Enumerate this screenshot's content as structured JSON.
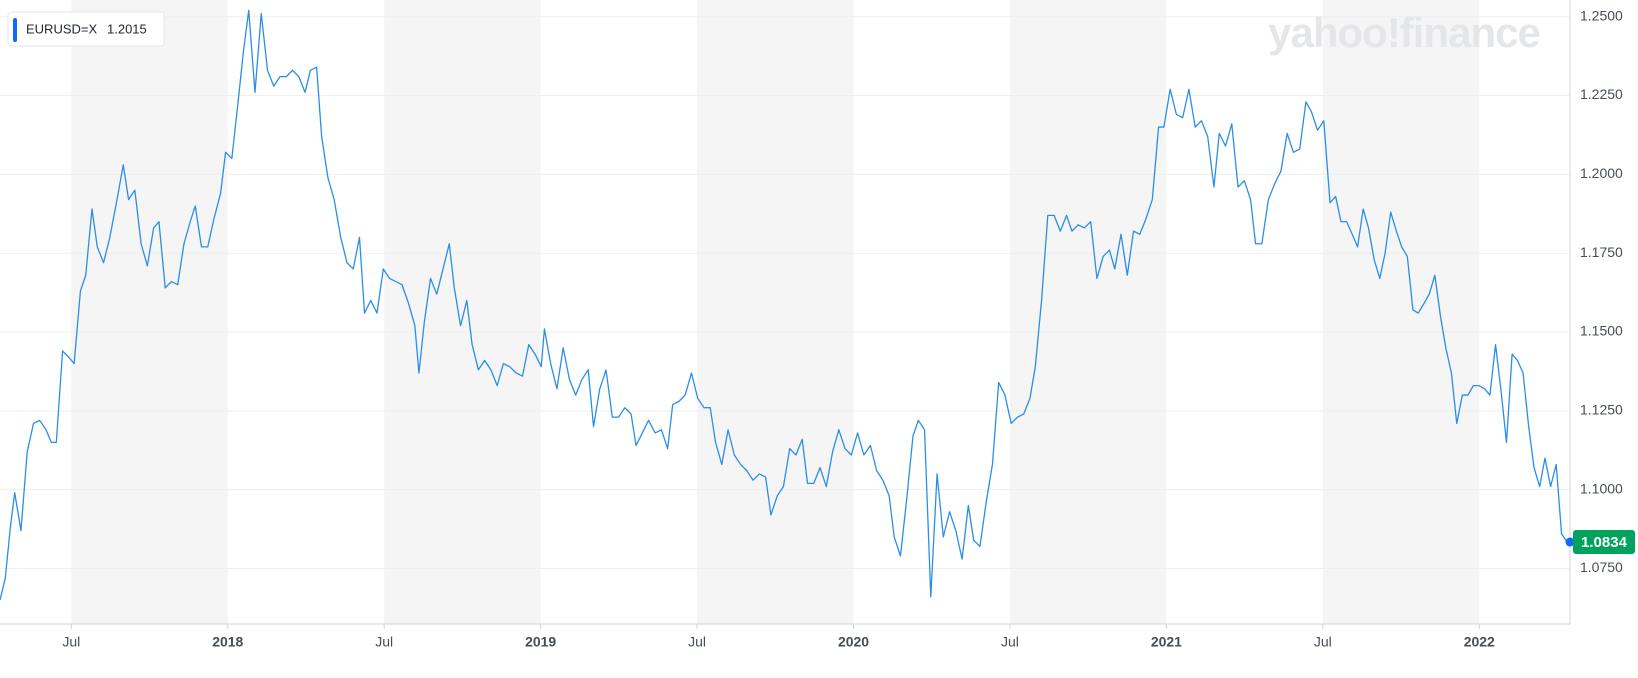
{
  "chart_data": {
    "type": "line",
    "legend_name": "EURUSD=X",
    "legend_value": 1.2015,
    "watermark": "yahoo!finance",
    "current_price": 1.0834,
    "grid": true,
    "xlim": [
      2017.272,
      2022.29
    ],
    "ylim": [
      1.0574,
      1.2553
    ],
    "xticks": [
      {
        "value": 2017.5,
        "label": "Jul"
      },
      {
        "value": 2018,
        "label": "2018"
      },
      {
        "value": 2018.5,
        "label": "Jul"
      },
      {
        "value": 2019,
        "label": "2019"
      },
      {
        "value": 2019.5,
        "label": "Jul"
      },
      {
        "value": 2020,
        "label": "2020"
      },
      {
        "value": 2020.5,
        "label": "Jul"
      },
      {
        "value": 2021,
        "label": "2021"
      },
      {
        "value": 2021.5,
        "label": "Jul"
      },
      {
        "value": 2022,
        "label": "2022"
      }
    ],
    "yticks": [
      {
        "value": 1.075,
        "label": "1.0750"
      },
      {
        "value": 1.1,
        "label": "1.1000"
      },
      {
        "value": 1.125,
        "label": "1.1250"
      },
      {
        "value": 1.15,
        "label": "1.1500"
      },
      {
        "value": 1.175,
        "label": "1.1750"
      },
      {
        "value": 1.2,
        "label": "1.2000"
      },
      {
        "value": 1.225,
        "label": "1.2250"
      },
      {
        "value": 1.25,
        "label": "1.2500"
      }
    ],
    "series": [
      {
        "name": "EURUSD=X",
        "color": "#2b8ee6",
        "x": [
          2017.272,
          2017.289,
          2017.305,
          2017.319,
          2017.339,
          2017.359,
          2017.379,
          2017.399,
          2017.419,
          2017.436,
          2017.452,
          2017.472,
          2017.492,
          2017.509,
          2017.529,
          2017.546,
          2017.566,
          2017.583,
          2017.603,
          2017.623,
          2017.646,
          2017.666,
          2017.683,
          2017.703,
          2017.723,
          2017.743,
          2017.763,
          2017.78,
          2017.8,
          2017.82,
          2017.84,
          2017.86,
          2017.88,
          2017.896,
          2017.916,
          2017.936,
          2017.956,
          2017.977,
          2017.993,
          2018.013,
          2018.033,
          2018.05,
          2018.067,
          2018.087,
          2018.107,
          2018.127,
          2018.147,
          2018.167,
          2018.187,
          2018.207,
          2018.227,
          2018.247,
          2018.264,
          2018.284,
          2018.3,
          2018.32,
          2018.34,
          2018.361,
          2018.381,
          2018.401,
          2018.421,
          2018.437,
          2018.457,
          2018.477,
          2018.497,
          2018.517,
          2018.537,
          2018.557,
          2018.578,
          2018.598,
          2018.611,
          2018.628,
          2018.648,
          2018.668,
          2018.688,
          2018.708,
          2018.724,
          2018.744,
          2018.764,
          2018.781,
          2018.801,
          2018.821,
          2018.841,
          2018.861,
          2018.881,
          2018.901,
          2018.922,
          2018.942,
          2018.962,
          2018.982,
          2019.002,
          2019.012,
          2019.032,
          2019.052,
          2019.072,
          2019.092,
          2019.112,
          2019.132,
          2019.152,
          2019.169,
          2019.189,
          2019.209,
          2019.229,
          2019.249,
          2019.269,
          2019.289,
          2019.305,
          2019.325,
          2019.345,
          2019.366,
          2019.386,
          2019.406,
          2019.422,
          2019.442,
          2019.462,
          2019.482,
          2019.502,
          2019.522,
          2019.542,
          2019.559,
          2019.579,
          2019.599,
          2019.619,
          2019.639,
          2019.659,
          2019.679,
          2019.699,
          2019.719,
          2019.736,
          2019.756,
          2019.776,
          2019.796,
          2019.816,
          2019.836,
          2019.853,
          2019.873,
          2019.893,
          2019.913,
          2019.933,
          2019.953,
          2019.973,
          2019.993,
          2020.013,
          2020.033,
          2020.054,
          2020.074,
          2020.094,
          2020.114,
          2020.13,
          2020.15,
          2020.17,
          2020.19,
          2020.207,
          2020.227,
          2020.247,
          2020.267,
          2020.287,
          2020.307,
          2020.327,
          2020.347,
          2020.367,
          2020.384,
          2020.404,
          2020.424,
          2020.444,
          2020.464,
          2020.484,
          2020.504,
          2020.524,
          2020.544,
          2020.564,
          2020.581,
          2020.601,
          2020.621,
          2020.641,
          2020.661,
          2020.681,
          2020.698,
          2020.718,
          2020.738,
          2020.758,
          2020.778,
          2020.798,
          2020.818,
          2020.835,
          2020.855,
          2020.875,
          2020.895,
          2020.915,
          2020.935,
          2020.955,
          2020.975,
          2020.992,
          2021.012,
          2021.032,
          2021.052,
          2021.072,
          2021.092,
          2021.112,
          2021.132,
          2021.152,
          2021.169,
          2021.189,
          2021.209,
          2021.229,
          2021.249,
          2021.269,
          2021.285,
          2021.305,
          2021.326,
          2021.346,
          2021.366,
          2021.386,
          2021.406,
          2021.426,
          2021.446,
          2021.463,
          2021.483,
          2021.503,
          2021.523,
          2021.541,
          2021.558,
          2021.576,
          2021.594,
          2021.611,
          2021.629,
          2021.646,
          2021.664,
          2021.682,
          2021.699,
          2021.717,
          2021.735,
          2021.752,
          2021.77,
          2021.788,
          2021.805,
          2021.823,
          2021.84,
          2021.858,
          2021.876,
          2021.893,
          2021.911,
          2021.928,
          2021.946,
          2021.964,
          2021.981,
          2021.999,
          2022.017,
          2022.034,
          2022.052,
          2022.07,
          2022.087,
          2022.105,
          2022.122,
          2022.14,
          2022.158,
          2022.175,
          2022.193,
          2022.21,
          2022.228,
          2022.246,
          2022.263,
          2022.281
        ],
        "values": [
          1.065,
          1.072,
          1.088,
          1.099,
          1.087,
          1.112,
          1.121,
          1.122,
          1.119,
          1.115,
          1.115,
          1.144,
          1.142,
          1.14,
          1.163,
          1.168,
          1.189,
          1.177,
          1.172,
          1.18,
          1.192,
          1.203,
          1.192,
          1.195,
          1.178,
          1.171,
          1.183,
          1.185,
          1.164,
          1.166,
          1.165,
          1.178,
          1.185,
          1.19,
          1.177,
          1.177,
          1.186,
          1.194,
          1.207,
          1.205,
          1.223,
          1.239,
          1.252,
          1.226,
          1.251,
          1.233,
          1.228,
          1.231,
          1.231,
          1.233,
          1.231,
          1.226,
          1.233,
          1.234,
          1.212,
          1.199,
          1.192,
          1.18,
          1.172,
          1.17,
          1.18,
          1.156,
          1.16,
          1.156,
          1.17,
          1.167,
          1.166,
          1.165,
          1.159,
          1.152,
          1.137,
          1.153,
          1.167,
          1.162,
          1.17,
          1.178,
          1.164,
          1.152,
          1.16,
          1.146,
          1.138,
          1.141,
          1.138,
          1.133,
          1.14,
          1.139,
          1.137,
          1.136,
          1.146,
          1.143,
          1.139,
          1.151,
          1.14,
          1.132,
          1.145,
          1.135,
          1.13,
          1.135,
          1.138,
          1.12,
          1.132,
          1.138,
          1.123,
          1.123,
          1.126,
          1.124,
          1.114,
          1.118,
          1.122,
          1.118,
          1.119,
          1.113,
          1.127,
          1.128,
          1.13,
          1.137,
          1.129,
          1.126,
          1.126,
          1.115,
          1.108,
          1.119,
          1.111,
          1.108,
          1.106,
          1.103,
          1.105,
          1.104,
          1.092,
          1.098,
          1.101,
          1.113,
          1.111,
          1.116,
          1.102,
          1.102,
          1.107,
          1.101,
          1.112,
          1.119,
          1.113,
          1.111,
          1.118,
          1.111,
          1.114,
          1.106,
          1.103,
          1.098,
          1.085,
          1.079,
          1.097,
          1.117,
          1.122,
          1.119,
          1.066,
          1.105,
          1.085,
          1.093,
          1.087,
          1.078,
          1.095,
          1.084,
          1.082,
          1.096,
          1.108,
          1.134,
          1.13,
          1.121,
          1.123,
          1.124,
          1.129,
          1.139,
          1.16,
          1.187,
          1.187,
          1.182,
          1.187,
          1.182,
          1.184,
          1.183,
          1.185,
          1.167,
          1.174,
          1.176,
          1.17,
          1.181,
          1.168,
          1.182,
          1.181,
          1.186,
          1.192,
          1.215,
          1.215,
          1.227,
          1.219,
          1.218,
          1.227,
          1.215,
          1.217,
          1.212,
          1.196,
          1.213,
          1.209,
          1.216,
          1.196,
          1.198,
          1.192,
          1.178,
          1.178,
          1.192,
          1.197,
          1.201,
          1.213,
          1.207,
          1.208,
          1.223,
          1.22,
          1.214,
          1.217,
          1.191,
          1.193,
          1.185,
          1.185,
          1.181,
          1.177,
          1.189,
          1.183,
          1.173,
          1.167,
          1.175,
          1.188,
          1.182,
          1.177,
          1.174,
          1.157,
          1.156,
          1.159,
          1.162,
          1.168,
          1.155,
          1.145,
          1.137,
          1.121,
          1.13,
          1.13,
          1.133,
          1.133,
          1.132,
          1.13,
          1.146,
          1.131,
          1.115,
          1.143,
          1.141,
          1.137,
          1.12,
          1.107,
          1.101,
          1.11,
          1.101,
          1.108,
          1.086,
          1.0834
        ]
      }
    ]
  }
}
